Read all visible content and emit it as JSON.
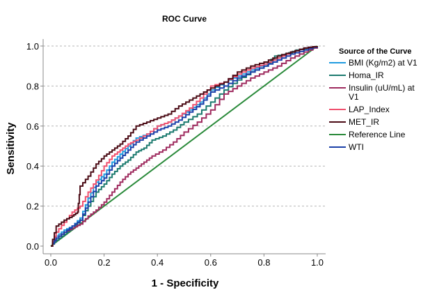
{
  "chart_data": {
    "type": "line",
    "title": "ROC Curve",
    "xlabel": "1 - Specificity",
    "ylabel": "Sensitivity",
    "xlim": [
      0,
      1
    ],
    "ylim": [
      0,
      1
    ],
    "xticks": [
      "0.0",
      "0.2",
      "0.4",
      "0.6",
      "0.8",
      "1.0"
    ],
    "yticks": [
      "0.0",
      "0.2",
      "0.4",
      "0.6",
      "0.8",
      "1.0"
    ],
    "grid": "horizontal-dashed",
    "legend": {
      "title": "Source of the Curve",
      "placement": "right"
    },
    "series": [
      {
        "name": "BMI (Kg/m2) at V1",
        "legend_lines": [
          "BMI (Kg/m2) at V1"
        ],
        "color": "#1f9be0",
        "x": [
          0.0,
          0.02,
          0.05,
          0.08,
          0.11,
          0.14,
          0.17,
          0.2,
          0.23,
          0.26,
          0.29,
          0.32,
          0.36,
          0.4,
          0.44,
          0.48,
          0.52,
          0.56,
          0.6,
          0.65,
          0.7,
          0.75,
          0.8,
          0.85,
          0.9,
          0.95,
          1.0
        ],
        "y": [
          0.0,
          0.05,
          0.08,
          0.1,
          0.14,
          0.24,
          0.32,
          0.36,
          0.42,
          0.46,
          0.5,
          0.54,
          0.56,
          0.6,
          0.62,
          0.65,
          0.68,
          0.72,
          0.78,
          0.82,
          0.85,
          0.88,
          0.91,
          0.94,
          0.97,
          0.99,
          1.0
        ]
      },
      {
        "name": "Homa_IR",
        "legend_lines": [
          "Homa_IR"
        ],
        "color": "#1b7a6e",
        "x": [
          0.0,
          0.02,
          0.05,
          0.08,
          0.11,
          0.14,
          0.17,
          0.2,
          0.23,
          0.26,
          0.29,
          0.32,
          0.35,
          0.38,
          0.42,
          0.46,
          0.5,
          0.55,
          0.6,
          0.65,
          0.7,
          0.75,
          0.8,
          0.84,
          0.88,
          0.92,
          0.96,
          1.0
        ],
        "y": [
          0.0,
          0.03,
          0.06,
          0.09,
          0.13,
          0.2,
          0.27,
          0.31,
          0.36,
          0.4,
          0.43,
          0.47,
          0.49,
          0.53,
          0.55,
          0.58,
          0.62,
          0.66,
          0.72,
          0.78,
          0.83,
          0.87,
          0.9,
          0.95,
          0.96,
          0.98,
          0.99,
          1.0
        ]
      },
      {
        "name": "Insulin  (uU/mL) at V1",
        "legend_lines": [
          "Insulin  (uU/mL) at",
          "V1"
        ],
        "color": "#9e2a5e",
        "x": [
          0.0,
          0.02,
          0.05,
          0.08,
          0.11,
          0.14,
          0.17,
          0.2,
          0.23,
          0.26,
          0.29,
          0.32,
          0.35,
          0.38,
          0.42,
          0.46,
          0.5,
          0.55,
          0.6,
          0.65,
          0.7,
          0.75,
          0.8,
          0.85,
          0.9,
          0.95,
          1.0
        ],
        "y": [
          0.0,
          0.04,
          0.07,
          0.09,
          0.11,
          0.15,
          0.18,
          0.22,
          0.27,
          0.32,
          0.36,
          0.39,
          0.42,
          0.45,
          0.48,
          0.52,
          0.57,
          0.62,
          0.68,
          0.76,
          0.8,
          0.84,
          0.87,
          0.9,
          0.94,
          0.97,
          1.0
        ]
      },
      {
        "name": "LAP_Index",
        "legend_lines": [
          "LAP_Index"
        ],
        "color": "#f0506e",
        "x": [
          0.0,
          0.02,
          0.05,
          0.08,
          0.11,
          0.14,
          0.17,
          0.2,
          0.23,
          0.26,
          0.29,
          0.32,
          0.36,
          0.4,
          0.44,
          0.48,
          0.52,
          0.56,
          0.6,
          0.65,
          0.7,
          0.75,
          0.8,
          0.85,
          0.9,
          0.95,
          1.0
        ],
        "y": [
          0.0,
          0.07,
          0.12,
          0.17,
          0.2,
          0.27,
          0.33,
          0.4,
          0.45,
          0.48,
          0.51,
          0.53,
          0.56,
          0.6,
          0.62,
          0.65,
          0.69,
          0.74,
          0.8,
          0.82,
          0.86,
          0.89,
          0.91,
          0.94,
          0.97,
          0.99,
          1.0
        ]
      },
      {
        "name": "MET_IR",
        "legend_lines": [
          "MET_IR"
        ],
        "color": "#4a0a14",
        "x": [
          0.0,
          0.02,
          0.05,
          0.08,
          0.1,
          0.11,
          0.14,
          0.17,
          0.2,
          0.23,
          0.26,
          0.29,
          0.32,
          0.36,
          0.4,
          0.44,
          0.48,
          0.52,
          0.56,
          0.6,
          0.65,
          0.7,
          0.75,
          0.8,
          0.85,
          0.9,
          0.95,
          1.0
        ],
        "y": [
          0.0,
          0.1,
          0.13,
          0.15,
          0.17,
          0.3,
          0.35,
          0.41,
          0.45,
          0.48,
          0.51,
          0.55,
          0.6,
          0.62,
          0.64,
          0.66,
          0.7,
          0.73,
          0.76,
          0.79,
          0.82,
          0.87,
          0.9,
          0.92,
          0.95,
          0.97,
          0.99,
          1.0
        ]
      },
      {
        "name": "Reference Line",
        "legend_lines": [
          "Reference Line"
        ],
        "color": "#2a8a3a",
        "x": [
          0.0,
          1.0
        ],
        "y": [
          0.0,
          1.0
        ]
      },
      {
        "name": "WTI",
        "legend_lines": [
          "WTI"
        ],
        "color": "#1a3fa8",
        "x": [
          0.0,
          0.02,
          0.05,
          0.08,
          0.11,
          0.14,
          0.17,
          0.2,
          0.23,
          0.26,
          0.29,
          0.32,
          0.36,
          0.4,
          0.44,
          0.48,
          0.52,
          0.56,
          0.6,
          0.65,
          0.7,
          0.75,
          0.8,
          0.85,
          0.9,
          0.95,
          1.0
        ],
        "y": [
          0.0,
          0.04,
          0.07,
          0.1,
          0.13,
          0.22,
          0.3,
          0.34,
          0.4,
          0.44,
          0.48,
          0.52,
          0.55,
          0.58,
          0.6,
          0.63,
          0.67,
          0.71,
          0.77,
          0.8,
          0.84,
          0.87,
          0.9,
          0.93,
          0.96,
          0.98,
          1.0
        ]
      }
    ]
  }
}
